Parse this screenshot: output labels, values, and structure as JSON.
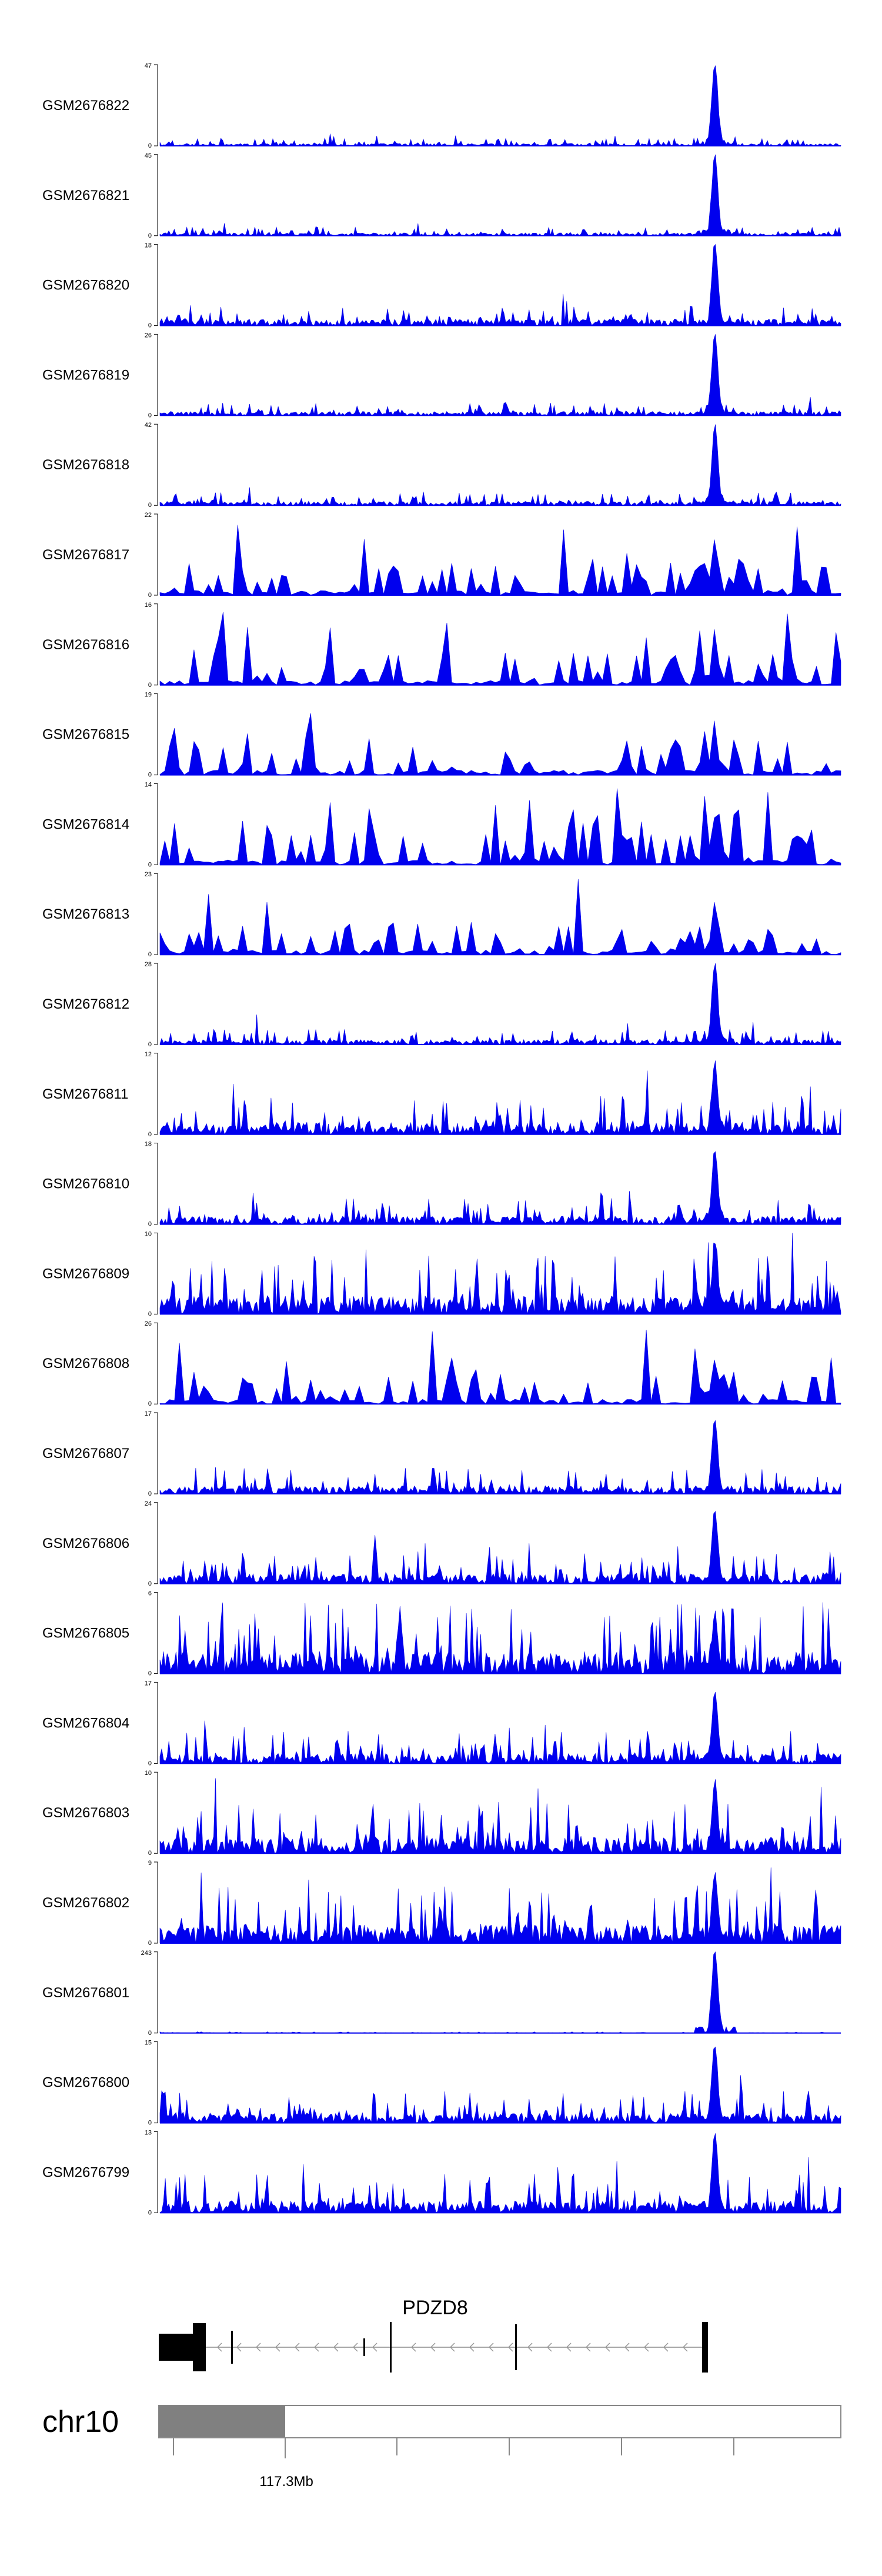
{
  "chart_data": {
    "type": "area",
    "tracks": [
      {
        "name": "GSM2676822",
        "ymax": "47",
        "ymin": "0"
      },
      {
        "name": "GSM2676821",
        "ymax": "45",
        "ymin": "0"
      },
      {
        "name": "GSM2676820",
        "ymax": "18",
        "ymin": "0"
      },
      {
        "name": "GSM2676819",
        "ymax": "26",
        "ymin": "0"
      },
      {
        "name": "GSM2676818",
        "ymax": "42",
        "ymin": "0"
      },
      {
        "name": "GSM2676817",
        "ymax": "22",
        "ymin": "0"
      },
      {
        "name": "GSM2676816",
        "ymax": "16",
        "ymin": "0"
      },
      {
        "name": "GSM2676815",
        "ymax": "19",
        "ymin": "0"
      },
      {
        "name": "GSM2676814",
        "ymax": "14",
        "ymin": "0"
      },
      {
        "name": "GSM2676813",
        "ymax": "23",
        "ymin": "0"
      },
      {
        "name": "GSM2676812",
        "ymax": "28",
        "ymin": "0"
      },
      {
        "name": "GSM2676811",
        "ymax": "12",
        "ymin": "0"
      },
      {
        "name": "GSM2676810",
        "ymax": "18",
        "ymin": "0"
      },
      {
        "name": "GSM2676809",
        "ymax": "10",
        "ymin": "0"
      },
      {
        "name": "GSM2676808",
        "ymax": "26",
        "ymin": "0"
      },
      {
        "name": "GSM2676807",
        "ymax": "17",
        "ymin": "0"
      },
      {
        "name": "GSM2676806",
        "ymax": "24",
        "ymin": "0"
      },
      {
        "name": "GSM2676805",
        "ymax": "6",
        "ymin": "0"
      },
      {
        "name": "GSM2676804",
        "ymax": "17",
        "ymin": "0"
      },
      {
        "name": "GSM2676803",
        "ymax": "10",
        "ymin": "0"
      },
      {
        "name": "GSM2676802",
        "ymax": "9",
        "ymin": "0"
      },
      {
        "name": "GSM2676801",
        "ymax": "243",
        "ymin": "0"
      },
      {
        "name": "GSM2676800",
        "ymax": "15",
        "ymin": "0"
      },
      {
        "name": "GSM2676799",
        "ymax": "13",
        "ymin": "0"
      }
    ],
    "gene": {
      "name": "PDZD8",
      "strand": "-"
    },
    "chromosome": {
      "name": "chr10",
      "tick_label": "117.3Mb"
    }
  },
  "colors": {
    "signal": "#0000ee",
    "gene": "#000000",
    "ideogram_band": "#808080",
    "axis": "#888888"
  }
}
